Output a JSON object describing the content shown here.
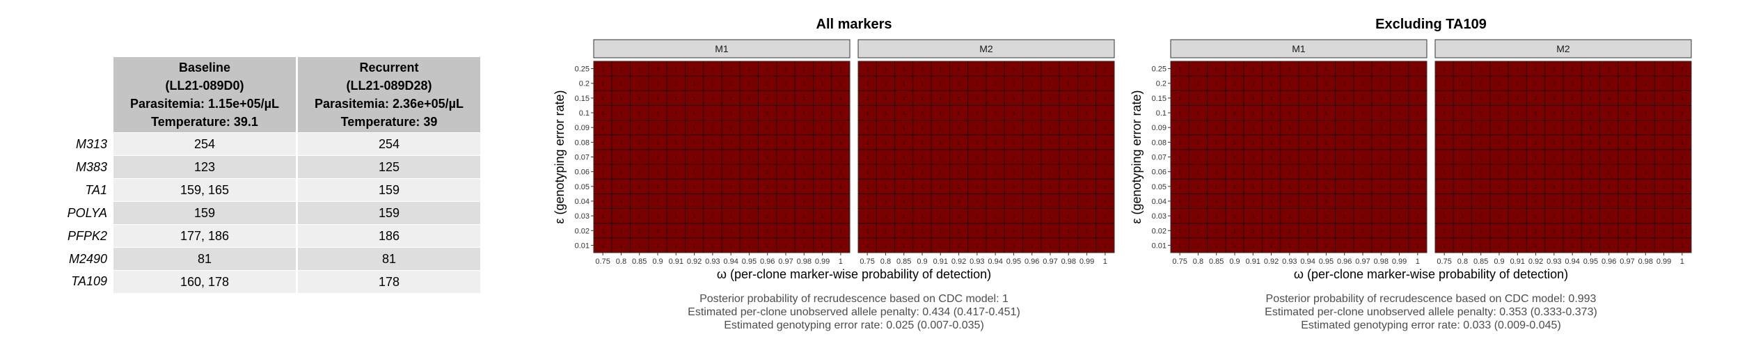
{
  "table": {
    "columns": [
      {
        "line1": "Baseline",
        "line2": "(LL21-089D0)",
        "line3": "Parasitemia: 1.15e+05/µL",
        "line4": "Temperature: 39.1"
      },
      {
        "line1": "Recurrent",
        "line2": "(LL21-089D28)",
        "line3": "Parasitemia: 2.36e+05/µL",
        "line4": "Temperature: 39"
      }
    ],
    "rows": [
      {
        "marker": "M313",
        "baseline": "254",
        "recurrent": "254"
      },
      {
        "marker": "M383",
        "baseline": "123",
        "recurrent": "125"
      },
      {
        "marker": "TA1",
        "baseline": "159, 165",
        "recurrent": "159"
      },
      {
        "marker": "POLYA",
        "baseline": "159",
        "recurrent": "159"
      },
      {
        "marker": "PFPK2",
        "baseline": "177, 186",
        "recurrent": "186"
      },
      {
        "marker": "M2490",
        "baseline": "81",
        "recurrent": "81"
      },
      {
        "marker": "TA109",
        "baseline": "160, 178",
        "recurrent": "178"
      }
    ]
  },
  "colors": {
    "tile": "#7a0000",
    "tile_border": "#1a0000",
    "strip": "#d9d9d9",
    "header_bg": "#c4c4c4"
  },
  "chart_data": [
    {
      "type": "heatmap",
      "title": "All markers",
      "facets": [
        "M1",
        "M2"
      ],
      "x": [
        0.75,
        0.8,
        0.85,
        0.9,
        0.91,
        0.92,
        0.93,
        0.94,
        0.95,
        0.96,
        0.97,
        0.98,
        0.99,
        1
      ],
      "y": [
        0.01,
        0.02,
        0.03,
        0.04,
        0.05,
        0.06,
        0.07,
        0.08,
        0.09,
        0.1,
        0.15,
        0.2,
        0.25
      ],
      "xlabel": "ω (per-clone marker-wise probability of detection)",
      "ylabel": "ε (genotyping error rate)",
      "cell_value": 1,
      "caption": [
        "Posterior probability of recrudescence based on CDC model: 1",
        "Estimated per-clone unobserved allele penalty: 0.434 (0.417-0.451)",
        "Estimated genotyping error rate: 0.025 (0.007-0.035)"
      ]
    },
    {
      "type": "heatmap",
      "title": "Excluding TA109",
      "facets": [
        "M1",
        "M2"
      ],
      "x": [
        0.75,
        0.8,
        0.85,
        0.9,
        0.91,
        0.92,
        0.93,
        0.94,
        0.95,
        0.96,
        0.97,
        0.98,
        0.99,
        1
      ],
      "y": [
        0.01,
        0.02,
        0.03,
        0.04,
        0.05,
        0.06,
        0.07,
        0.08,
        0.09,
        0.1,
        0.15,
        0.2,
        0.25
      ],
      "xlabel": "ω (per-clone marker-wise probability of detection)",
      "ylabel": "ε (genotyping error rate)",
      "cell_value": 1,
      "caption": [
        "Posterior probability of recrudescence based on CDC model: 0.993",
        "Estimated per-clone unobserved allele penalty: 0.353 (0.333-0.373)",
        "Estimated genotyping error rate: 0.033 (0.009-0.045)"
      ]
    }
  ]
}
